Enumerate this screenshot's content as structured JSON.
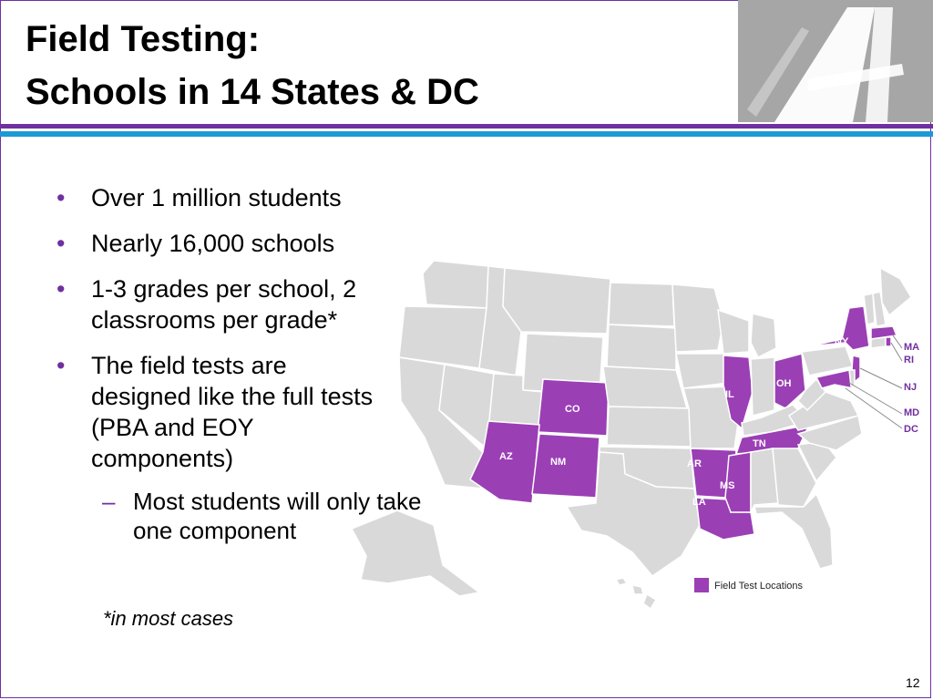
{
  "title": {
    "line1": "Field Testing:",
    "line2": "Schools in 14 States & DC"
  },
  "bullets": [
    {
      "text": "Over 1 million students"
    },
    {
      "text": "Nearly 16,000 schools"
    },
    {
      "text": "1-3 grades per school, 2 classrooms per grade*"
    },
    {
      "text": "The field tests are designed like the full tests (PBA and EOY components)"
    }
  ],
  "sub_bullets": [
    {
      "text": "Most students will only take one component"
    }
  ],
  "bullet_symbol": "•",
  "dash_symbol": "–",
  "note": "*in most cases",
  "page_number": "12",
  "colors": {
    "accent_purple": "#7030a0",
    "accent_blue": "#1b9ad6",
    "field_state": "#9b3fb5",
    "other_state": "#d9d9d9"
  },
  "map": {
    "states_inside": [
      "CO",
      "AZ",
      "NM",
      "IL",
      "OH",
      "NY",
      "AR",
      "TN",
      "MS",
      "LA"
    ],
    "states_callout": [
      "MA",
      "RI",
      "NJ",
      "MD",
      "DC"
    ],
    "legend_label": "Field Test Locations"
  }
}
